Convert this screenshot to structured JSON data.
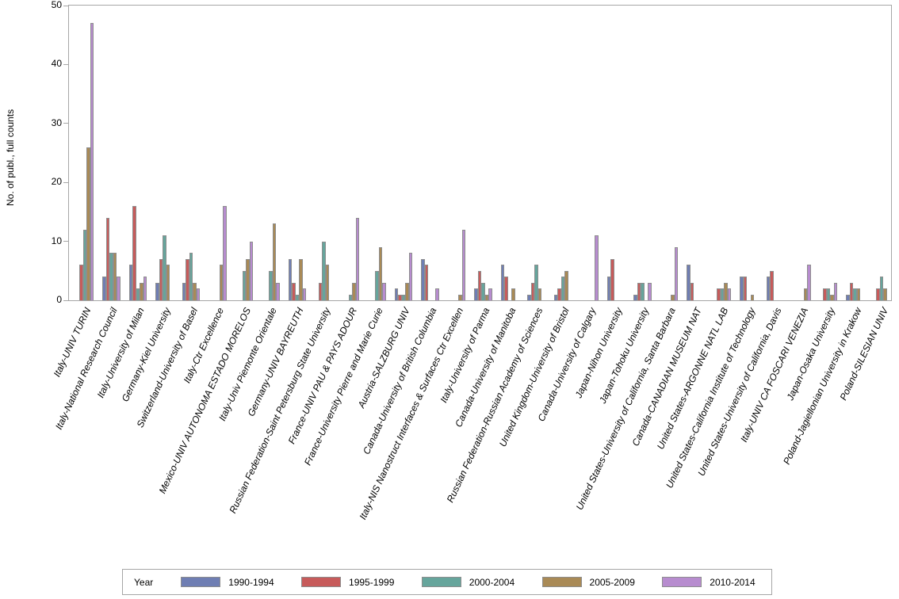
{
  "chart_data": {
    "type": "bar",
    "title": "",
    "ylabel": "No. of publ., full counts",
    "xlabel": "",
    "ylim": [
      0,
      50
    ],
    "yticks": [
      0,
      10,
      20,
      30,
      40,
      50
    ],
    "grid": false,
    "legend_title": "Year",
    "legend_position": "bottom",
    "categories": [
      "Italy-UNIV TURIN",
      "Italy-National Research Council",
      "Italy-University of Milan",
      "Germany-Kiel University",
      "Switzerland-University of Basel",
      "Italy-Ctr Excellence",
      "Mexico-UNIV AUTONOMA ESTADO MORELOS",
      "Italy-Univ Piemonte Orientale",
      "Germany-UNIV BAYREUTH",
      "Russian Federation-Saint Petersburg State University",
      "France-UNIV PAU & PAYS ADOUR",
      "France-University Pierre and Marie Curie",
      "Austria-SALZBURG UNIV",
      "Canada-University of British Columbia",
      "Italy-NIS Nanostruct Interfaces & Surfaces Ctr Excellen",
      "Italy-University of Parma",
      "Canada-University of Manitoba",
      "Russian Federation-Russian Academy of Sciences",
      "United Kingdom-University of Bristol",
      "Canada-University of Calgary",
      "Japan-Nihon University",
      "Japan-Tohoku University",
      "United States-University of California, Santa Barbara",
      "Canada-CANADIAN MUSEUM NAT",
      "United States-ARGONNE NATL LAB",
      "United States-California Institute of Technology",
      "United States-University of California, Davis",
      "Italy-UNIV CA FOSCARI VENEZIA",
      "Japan-Osaka University",
      "Poland-Jagiellonian University in Krakow",
      "Poland-SILESIAN UNIV"
    ],
    "series": [
      {
        "name": "1990-1994",
        "color": "#6F7EB3",
        "values": [
          0,
          4,
          6,
          3,
          3,
          0,
          0,
          0,
          7,
          0,
          0,
          0,
          2,
          7,
          0,
          2,
          6,
          1,
          1,
          0,
          4,
          1,
          0,
          6,
          0,
          4,
          4,
          0,
          0,
          1,
          0
        ]
      },
      {
        "name": "1995-1999",
        "color": "#C75B5B",
        "values": [
          6,
          14,
          16,
          7,
          7,
          0,
          0,
          0,
          3,
          3,
          0,
          0,
          1,
          6,
          0,
          5,
          4,
          3,
          2,
          0,
          7,
          3,
          0,
          3,
          2,
          4,
          5,
          0,
          2,
          3,
          2
        ]
      },
      {
        "name": "2000-2004",
        "color": "#66A59C",
        "values": [
          12,
          8,
          2,
          11,
          8,
          0,
          5,
          5,
          1,
          10,
          1,
          5,
          1,
          0,
          0,
          3,
          0,
          6,
          4,
          0,
          0,
          3,
          0,
          0,
          2,
          0,
          0,
          0,
          2,
          2,
          4
        ]
      },
      {
        "name": "2005-2009",
        "color": "#A98A56",
        "values": [
          26,
          8,
          3,
          6,
          3,
          6,
          7,
          13,
          7,
          6,
          3,
          9,
          3,
          0,
          1,
          1,
          2,
          2,
          5,
          0,
          0,
          0,
          1,
          0,
          3,
          1,
          0,
          2,
          1,
          2,
          2
        ]
      },
      {
        "name": "2010-2014",
        "color": "#B78CCF",
        "values": [
          47,
          4,
          4,
          0,
          2,
          16,
          10,
          3,
          2,
          0,
          14,
          3,
          8,
          2,
          12,
          2,
          0,
          0,
          0,
          11,
          0,
          3,
          9,
          0,
          2,
          0,
          0,
          6,
          3,
          0,
          0
        ]
      }
    ]
  },
  "style_tokens": {
    "frame_color": "#a6a6a6",
    "bar_outline_color": "#8e8e8e",
    "text_color": "#000000",
    "background": "#ffffff"
  }
}
